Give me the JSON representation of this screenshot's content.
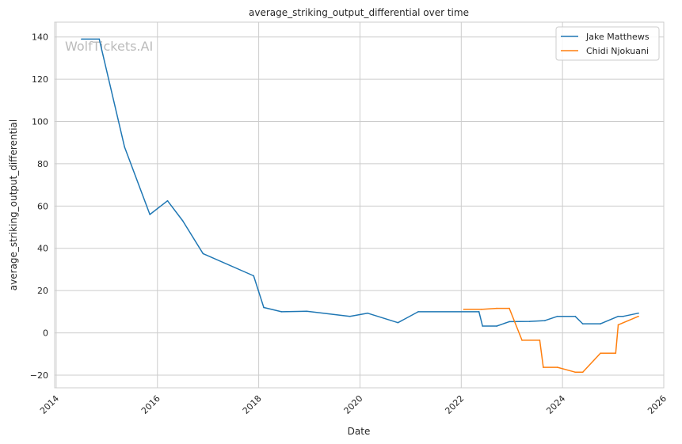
{
  "watermark": "WolfTickets.AI",
  "chart_data": {
    "type": "line",
    "title": "average_striking_output_differential over time",
    "xlabel": "Date",
    "ylabel": "average_striking_output_differential",
    "xlim": [
      2013.97,
      2026.0
    ],
    "ylim": [
      -26,
      147
    ],
    "x_ticks": [
      2014,
      2016,
      2018,
      2020,
      2022,
      2024,
      2026
    ],
    "y_ticks": [
      -20,
      0,
      20,
      40,
      60,
      80,
      100,
      120,
      140
    ],
    "grid": true,
    "legend": "top-right",
    "series": [
      {
        "name": "Jake Matthews",
        "color": "#1f77b4",
        "points": [
          [
            2014.5,
            139
          ],
          [
            2014.85,
            139
          ],
          [
            2015.35,
            88
          ],
          [
            2015.85,
            56
          ],
          [
            2016.2,
            62.5
          ],
          [
            2016.5,
            53
          ],
          [
            2016.9,
            37.5
          ],
          [
            2017.9,
            27
          ],
          [
            2018.1,
            12
          ],
          [
            2018.45,
            10
          ],
          [
            2018.95,
            10.2
          ],
          [
            2019.8,
            7.8
          ],
          [
            2020.15,
            9.3
          ],
          [
            2020.75,
            4.8
          ],
          [
            2021.15,
            10
          ],
          [
            2022.35,
            10
          ],
          [
            2022.42,
            3.2
          ],
          [
            2022.7,
            3.2
          ],
          [
            2022.95,
            5.3
          ],
          [
            2023.35,
            5.4
          ],
          [
            2023.65,
            5.8
          ],
          [
            2023.9,
            7.8
          ],
          [
            2024.25,
            7.8
          ],
          [
            2024.4,
            4.3
          ],
          [
            2024.75,
            4.3
          ],
          [
            2025.1,
            7.8
          ],
          [
            2025.2,
            7.8
          ],
          [
            2025.5,
            9.3
          ]
        ]
      },
      {
        "name": "Chidi Njokuani",
        "color": "#ff7f0e",
        "points": [
          [
            2022.05,
            11.1
          ],
          [
            2022.4,
            11.1
          ],
          [
            2022.7,
            11.6
          ],
          [
            2022.95,
            11.6
          ],
          [
            2023.2,
            -3.5
          ],
          [
            2023.55,
            -3.5
          ],
          [
            2023.62,
            -16.3
          ],
          [
            2023.9,
            -16.3
          ],
          [
            2024.25,
            -18.6
          ],
          [
            2024.4,
            -18.6
          ],
          [
            2024.75,
            -9.6
          ],
          [
            2025.05,
            -9.6
          ],
          [
            2025.1,
            3.8
          ],
          [
            2025.5,
            7.8
          ]
        ]
      }
    ]
  }
}
